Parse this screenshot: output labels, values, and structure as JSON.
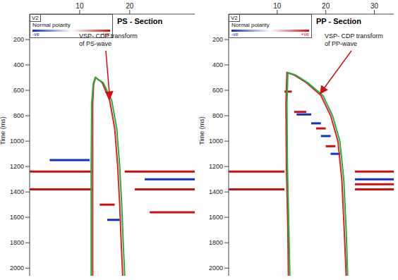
{
  "chart_data": [
    {
      "type": "line",
      "title": "PS - Section",
      "annotation": "VSP- CDP transform of PS-wave",
      "header_label": "V2",
      "polarity_legend": {
        "title": "Normal polarity",
        "items": [
          {
            "label": "-ve",
            "color": "#1030c0"
          },
          {
            "label": "+ve",
            "color": "#d01010"
          }
        ]
      },
      "y_label": "Time (ms)",
      "xlim": [
        0,
        33
      ],
      "xticks": [
        10,
        20
      ],
      "ylim": [
        0,
        2060
      ],
      "yticks": [
        200,
        400,
        600,
        800,
        1000,
        1200,
        1400,
        1600,
        1800,
        2000
      ],
      "series": [
        {
          "color": "#e02020",
          "x": [
            12.6,
            12.6,
            12.6,
            12.8,
            13.2,
            14.5,
            16,
            17,
            17.6,
            18,
            18.3,
            18.6
          ],
          "values": [
            2060,
            1200,
            700,
            550,
            500,
            540,
            680,
            900,
            1200,
            1500,
            1800,
            2060
          ]
        },
        {
          "color": "#20b040",
          "x": [
            12.3,
            12.3,
            12.4,
            12.7,
            13.1,
            14.7,
            16.4,
            17.4,
            18,
            18.4,
            18.7,
            19
          ],
          "values": [
            2060,
            1200,
            700,
            550,
            500,
            540,
            680,
            900,
            1200,
            1500,
            1800,
            2060
          ]
        }
      ],
      "events": [
        {
          "x": [
            0,
            12.5
          ],
          "t": 1240,
          "polarity": "+ve"
        },
        {
          "x": [
            19,
            33
          ],
          "t": 1240,
          "polarity": "+ve"
        },
        {
          "x": [
            0,
            12.5
          ],
          "t": 1380,
          "polarity": "+ve"
        },
        {
          "x": [
            21,
            33
          ],
          "t": 1380,
          "polarity": "+ve"
        },
        {
          "x": [
            4,
            12
          ],
          "t": 1150,
          "polarity": "-ve"
        },
        {
          "x": [
            23,
            33
          ],
          "t": 1300,
          "polarity": "-ve"
        },
        {
          "x": [
            15.5,
            18
          ],
          "t": 1620,
          "polarity": "-ve"
        },
        {
          "x": [
            24,
            33
          ],
          "t": 1560,
          "polarity": "+ve"
        },
        {
          "x": [
            14,
            17
          ],
          "t": 1500,
          "polarity": "+ve"
        }
      ]
    },
    {
      "type": "line",
      "title": "PP - Section",
      "annotation": "VSP- CDP transform of PP-wave",
      "header_label": "V2",
      "polarity_legend": {
        "title": "Normal polarity",
        "items": [
          {
            "label": "-ve",
            "color": "#1030c0"
          },
          {
            "label": "+ve",
            "color": "#d01010"
          }
        ]
      },
      "y_label": "Time (ms)",
      "xlim": [
        0,
        34
      ],
      "xticks": [
        10,
        20,
        30
      ],
      "ylim": [
        0,
        2060
      ],
      "yticks": [
        200,
        400,
        600,
        800,
        1000,
        1200,
        1400,
        1600,
        1800,
        2000
      ],
      "series": [
        {
          "color": "#e02020",
          "x": [
            12.3,
            12.2,
            11.9,
            11.8,
            12,
            13.5,
            16,
            19,
            21,
            22.5,
            23.3,
            23.8,
            24.2
          ],
          "values": [
            2060,
            1700,
            1200,
            700,
            460,
            480,
            540,
            640,
            800,
            1000,
            1300,
            1700,
            2060
          ]
        },
        {
          "color": "#20b040",
          "x": [
            12.6,
            12.4,
            12.1,
            12,
            12.2,
            13.8,
            16.3,
            19.4,
            21.4,
            22.9,
            23.7,
            24.2,
            24.5
          ],
          "values": [
            2060,
            1700,
            1200,
            700,
            460,
            480,
            540,
            640,
            800,
            1000,
            1300,
            1700,
            2060
          ]
        }
      ],
      "events": [
        {
          "x": [
            0,
            11.5
          ],
          "t": 1240,
          "polarity": "+ve"
        },
        {
          "x": [
            26,
            34
          ],
          "t": 1240,
          "polarity": "+ve"
        },
        {
          "x": [
            0,
            11.5
          ],
          "t": 1380,
          "polarity": "+ve"
        },
        {
          "x": [
            26,
            34
          ],
          "t": 1340,
          "polarity": "+ve"
        },
        {
          "x": [
            26,
            34
          ],
          "t": 1380,
          "polarity": "+ve"
        },
        {
          "x": [
            26,
            34
          ],
          "t": 1300,
          "polarity": "-ve"
        },
        {
          "x": [
            11.5,
            13
          ],
          "t": 610,
          "polarity": "+ve"
        },
        {
          "x": [
            13.5,
            16
          ],
          "t": 770,
          "polarity": "+ve"
        },
        {
          "x": [
            14,
            17
          ],
          "t": 790,
          "polarity": "-ve"
        },
        {
          "x": [
            17,
            19
          ],
          "t": 860,
          "polarity": "-ve"
        },
        {
          "x": [
            18,
            20
          ],
          "t": 900,
          "polarity": "+ve"
        },
        {
          "x": [
            19,
            21
          ],
          "t": 960,
          "polarity": "-ve"
        },
        {
          "x": [
            20,
            22
          ],
          "t": 1040,
          "polarity": "+ve"
        },
        {
          "x": [
            21,
            23
          ],
          "t": 1100,
          "polarity": "-ve"
        }
      ]
    }
  ]
}
